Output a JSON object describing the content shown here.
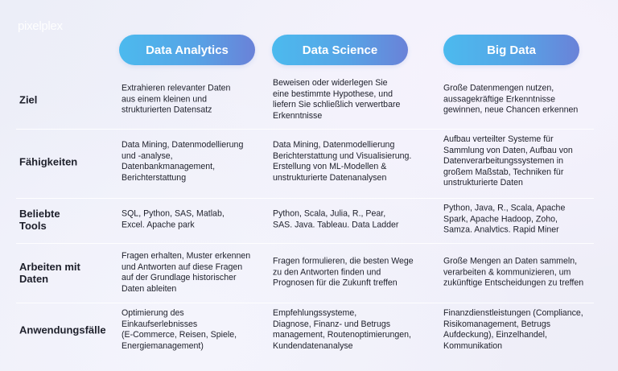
{
  "brand": "pixelplex",
  "columns": [
    "Data Analytics",
    "Data Science",
    "Big Data"
  ],
  "rows": [
    {
      "label": "Ziel",
      "cells": [
        [
          "Extrahieren relevanter Daten",
          "aus einem kleinen und",
          "strukturierten Datensatz"
        ],
        [
          "Beweisen oder widerlegen Sie",
          "eine bestimmte Hypothese, und",
          "liefern Sie schließlich verwertbare",
          "Erkenntnisse"
        ],
        [
          "Große Datenmengen nutzen,",
          "aussagekräftige Erkenntnisse",
          "gewinnen, neue Chancen erkennen"
        ]
      ]
    },
    {
      "label": "Fähigkeiten",
      "cells": [
        [
          "Data Mining, Datenmodellierung",
          "und -analyse,",
          "Datenbankmanagement,",
          "Berichterstattung"
        ],
        [
          "Data Mining, Datenmodellierung",
          "Berichterstattung und Visualisierung.",
          "Erstellung von ML-Modellen &",
          "unstrukturierte Datenanalysen"
        ],
        [
          "Aufbau verteilter Systeme für",
          "Sammlung von Daten, Aufbau von",
          "Datenverarbeitungssystemen in",
          "großem Maßstab, Techniken für",
          "unstrukturierte Daten"
        ]
      ]
    },
    {
      "label": "Beliebte Tools",
      "cells": [
        [
          "SQL, Python, SAS, Matlab,",
          "Excel. Apache park"
        ],
        [
          "Python, Scala, Julia, R., Pear,",
          "SAS. Java. Tableau. Data Ladder"
        ],
        [
          "Python, Java, R., Scala, Apache",
          "Spark, Apache Hadoop, Zoho,",
          "Samza. Analvtics. Rapid Miner"
        ]
      ]
    },
    {
      "label": "Arbeiten mit Daten",
      "cells": [
        [
          "Fragen erhalten, Muster erkennen",
          "und Antworten auf diese Fragen",
          "auf der Grundlage historischer",
          "Daten ableiten"
        ],
        [
          "Fragen formulieren, die besten Wege",
          "zu den Antworten finden und",
          "Prognosen für die Zukunft treffen"
        ],
        [
          "Große Mengen an Daten sammeln,",
          "verarbeiten & kommunizieren, um",
          "zukünftige Entscheidungen zu treffen"
        ]
      ]
    },
    {
      "label": "Anwendungsfälle",
      "cells": [
        [
          "Optimierung des",
          "Einkaufserlebnisses",
          "(E-Commerce, Reisen, Spiele,",
          "Energiemanagement)"
        ],
        [
          "Empfehlungssysteme,",
          "Diagnose, Finanz- und Betrugs",
          "management, Routenoptimierungen,",
          "Kundendatenanalyse"
        ],
        [
          "Finanzdienstleistungen (Compliance,",
          "Risikomanagement, Betrugs",
          "Aufdeckung), Einzelhandel,",
          "Kommunikation"
        ]
      ]
    }
  ],
  "colors": {
    "pill_start": "#4cbaee",
    "pill_end": "#6a82d8"
  }
}
